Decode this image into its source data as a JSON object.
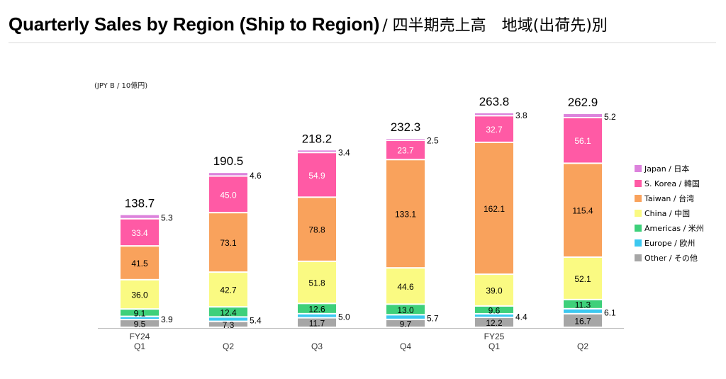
{
  "header": {
    "title": "Quarterly Sales by Region (Ship to Region)",
    "subtitle": "/ 四半期売上高　地域(出荷先)別"
  },
  "chart_data": {
    "type": "bar",
    "stacked": true,
    "unit_label": "(JPY B / 10億円)",
    "legend_position": "right",
    "categories": [
      {
        "fy": "FY24",
        "q": "Q1"
      },
      {
        "fy": "",
        "q": "Q2"
      },
      {
        "fy": "",
        "q": "Q3"
      },
      {
        "fy": "",
        "q": "Q4"
      },
      {
        "fy": "FY25",
        "q": "Q1"
      },
      {
        "fy": "",
        "q": "Q2"
      }
    ],
    "totals": [
      "138.7",
      "190.5",
      "218.2",
      "232.3",
      "263.8",
      "262.9"
    ],
    "series": [
      {
        "name": "Other / その他",
        "color": "#a6a6a6",
        "values": [
          9.5,
          7.3,
          11.7,
          9.7,
          12.2,
          16.7
        ],
        "labels": [
          "9.5",
          "7.3",
          "11.7",
          "9.7",
          "12.2",
          "16.7"
        ],
        "label_pos": "inside",
        "label_color": "#000000"
      },
      {
        "name": "Europe / 欧州",
        "color": "#3cc8f0",
        "values": [
          3.9,
          5.4,
          5.0,
          5.7,
          4.4,
          6.1
        ],
        "labels": [
          "3.9",
          "5.4",
          "5.0",
          "5.7",
          "4.4",
          "6.1"
        ],
        "label_pos": "outside",
        "label_color": "#000000"
      },
      {
        "name": "Americas / 米州",
        "color": "#3ed07a",
        "values": [
          9.1,
          12.4,
          12.6,
          13.0,
          9.6,
          11.3
        ],
        "labels": [
          "9.1",
          "12.4",
          "12.6",
          "13.0",
          "9.6",
          "11.3"
        ],
        "label_pos": "inside",
        "label_color": "#000000"
      },
      {
        "name": "China / 中国",
        "color": "#fafa82",
        "values": [
          36.0,
          42.7,
          51.8,
          44.6,
          39.0,
          52.1
        ],
        "labels": [
          "36.0",
          "42.7",
          "51.8",
          "44.6",
          "39.0",
          "52.1"
        ],
        "label_pos": "inside",
        "label_color": "#000000"
      },
      {
        "name": "Taiwan / 台湾",
        "color": "#f9a25c",
        "values": [
          41.5,
          73.1,
          78.8,
          133.1,
          162.1,
          115.4
        ],
        "labels": [
          "41.5",
          "73.1",
          "78.8",
          "133.1",
          "162.1",
          "115.4"
        ],
        "label_pos": "inside",
        "label_color": "#000000"
      },
      {
        "name": "S. Korea / 韓国",
        "color": "#ff5aa5",
        "values": [
          33.4,
          45.0,
          54.9,
          23.7,
          32.7,
          56.1
        ],
        "labels": [
          "33.4",
          "45.0",
          "54.9",
          "23.7",
          "32.7",
          "56.1"
        ],
        "label_pos": "inside",
        "label_color": "#ffffff"
      },
      {
        "name": "Japan / 日本",
        "color": "#dc82dc",
        "values": [
          5.3,
          4.6,
          3.4,
          2.5,
          3.8,
          5.2
        ],
        "labels": [
          "5.3",
          "4.6",
          "3.4",
          "2.5",
          "3.8",
          "5.2"
        ],
        "label_pos": "outside",
        "label_color": "#000000"
      }
    ],
    "legend": [
      "Japan / 日本",
      "S. Korea / 韓国",
      "Taiwan / 台湾",
      "China / 中国",
      "Americas / 米州",
      "Europe / 欧州",
      "Other / その他"
    ]
  }
}
